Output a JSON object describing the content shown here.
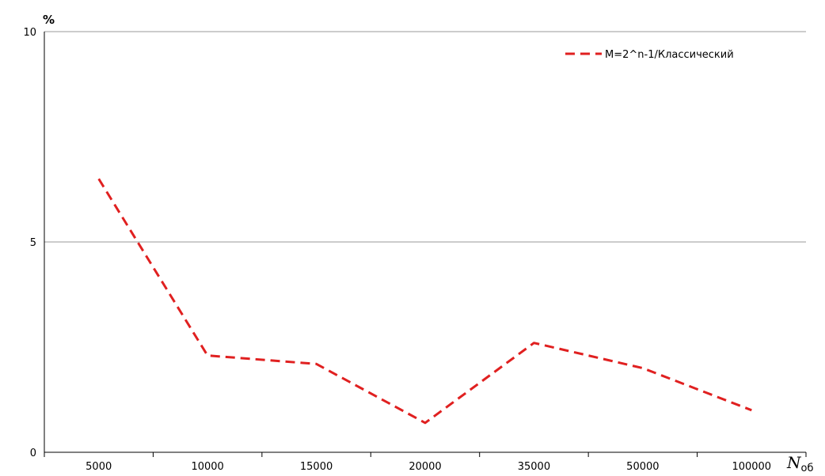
{
  "chart_data": {
    "type": "line",
    "title": "",
    "ylabel": "%",
    "xlabel": {
      "main": "N",
      "sub": "об"
    },
    "categories": [
      "5000",
      "10000",
      "15000",
      "20000",
      "35000",
      "50000",
      "100000"
    ],
    "ylim": [
      0,
      10
    ],
    "yticks": [
      "0",
      "5",
      "10"
    ],
    "grid": true,
    "legend_position": "top-right",
    "series": [
      {
        "name": "M=2^n-1/Классический",
        "color": "#e02020",
        "dash": "dashed",
        "values": [
          6.5,
          2.3,
          2.1,
          0.7,
          2.6,
          2.0,
          1.0
        ]
      }
    ]
  }
}
